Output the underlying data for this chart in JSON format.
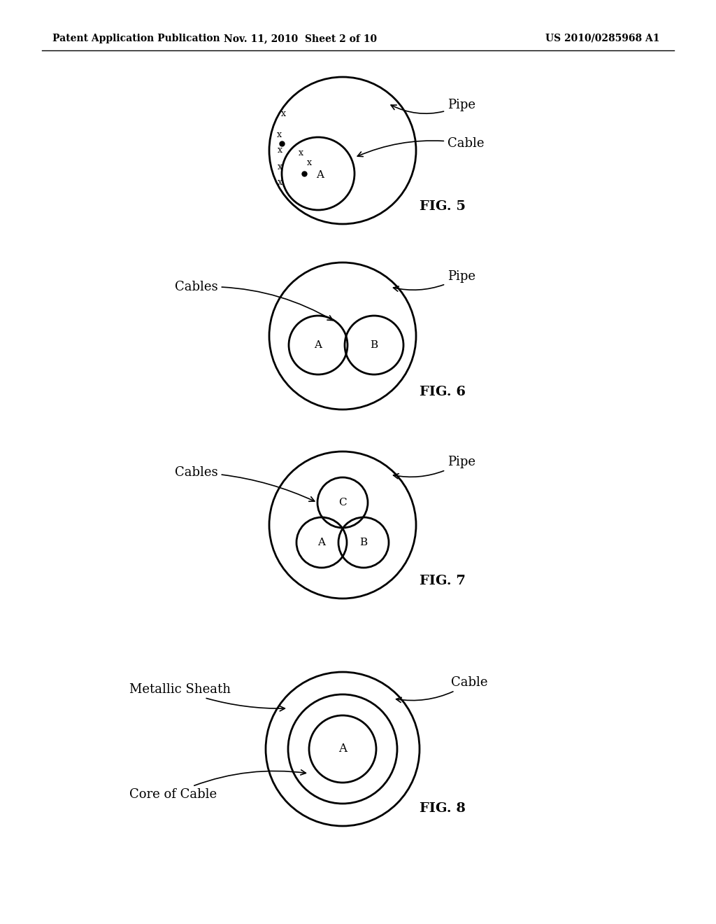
{
  "header_left": "Patent Application Publication",
  "header_mid": "Nov. 11, 2010  Sheet 2 of 10",
  "header_right": "US 2010/0285968 A1",
  "bg_color": "#ffffff",
  "line_color": "#000000"
}
